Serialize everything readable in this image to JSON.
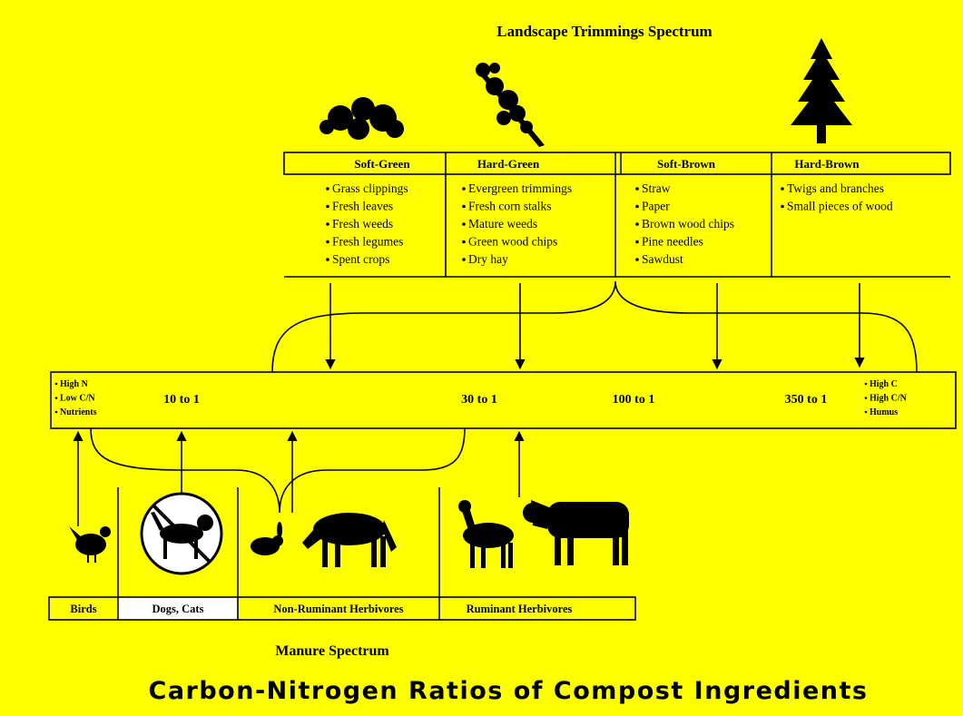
{
  "title": "Carbon-Nitrogen Ratios of Compost Ingredients",
  "landscape": {
    "title": "Landscape Trimmings Spectrum",
    "columns": [
      {
        "name": "Soft-Green",
        "items": [
          "Grass clippings",
          "Fresh leaves",
          "Fresh weeds",
          "Fresh legumes",
          "Spent crops"
        ]
      },
      {
        "name": "Hard-Green",
        "items": [
          "Evergreen trimmings",
          "Fresh corn stalks",
          "Mature weeds",
          "Green wood chips",
          "Dry hay"
        ]
      },
      {
        "name": "Soft-Brown",
        "items": [
          "Straw",
          "Paper",
          "Brown wood chips",
          "Pine needles",
          "Sawdust"
        ]
      },
      {
        "name": "Hard-Brown",
        "items": [
          "Twigs and branches",
          "Small pieces of wood"
        ]
      }
    ]
  },
  "scale": {
    "left": [
      "High N",
      "Low C/N",
      "Nutrients"
    ],
    "ratios": [
      "10 to 1",
      "30 to 1",
      "100 to 1",
      "350 to 1"
    ],
    "right": [
      "High C",
      "High C/N",
      "Humus"
    ]
  },
  "manure": {
    "title": "Manure Spectrum",
    "groups": [
      "Birds",
      "Dogs, Cats",
      "Non-Ruminant Herbivores",
      "Ruminant Herbivores"
    ]
  }
}
